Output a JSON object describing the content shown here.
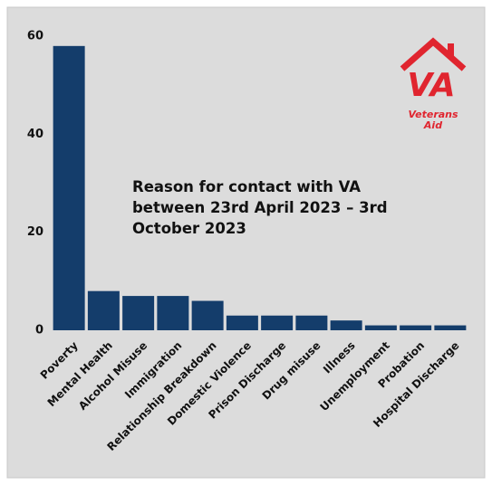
{
  "chart_data": {
    "type": "bar",
    "title": "Reason for contact with VA between 23rd April 2023 – 3rd October 2023",
    "categories": [
      "Poverty",
      "Mental Health",
      "Alcohol Misuse",
      "Immigration",
      "Relationship Breakdown",
      "Domestic Violence",
      "Prison Discharge",
      "Drug misuse",
      "Illness",
      "Unemployment",
      "Probation",
      "Hospital Discharge"
    ],
    "values": [
      58,
      8,
      7,
      7,
      6,
      3,
      3,
      3,
      2,
      1,
      1,
      1
    ],
    "color": "#143d6b",
    "ylim": [
      0,
      60
    ],
    "yticks": [
      0,
      20,
      40,
      60
    ],
    "grid": false
  },
  "logo": {
    "letters": "VA",
    "line1": "Veterans",
    "line2": "Aid"
  }
}
